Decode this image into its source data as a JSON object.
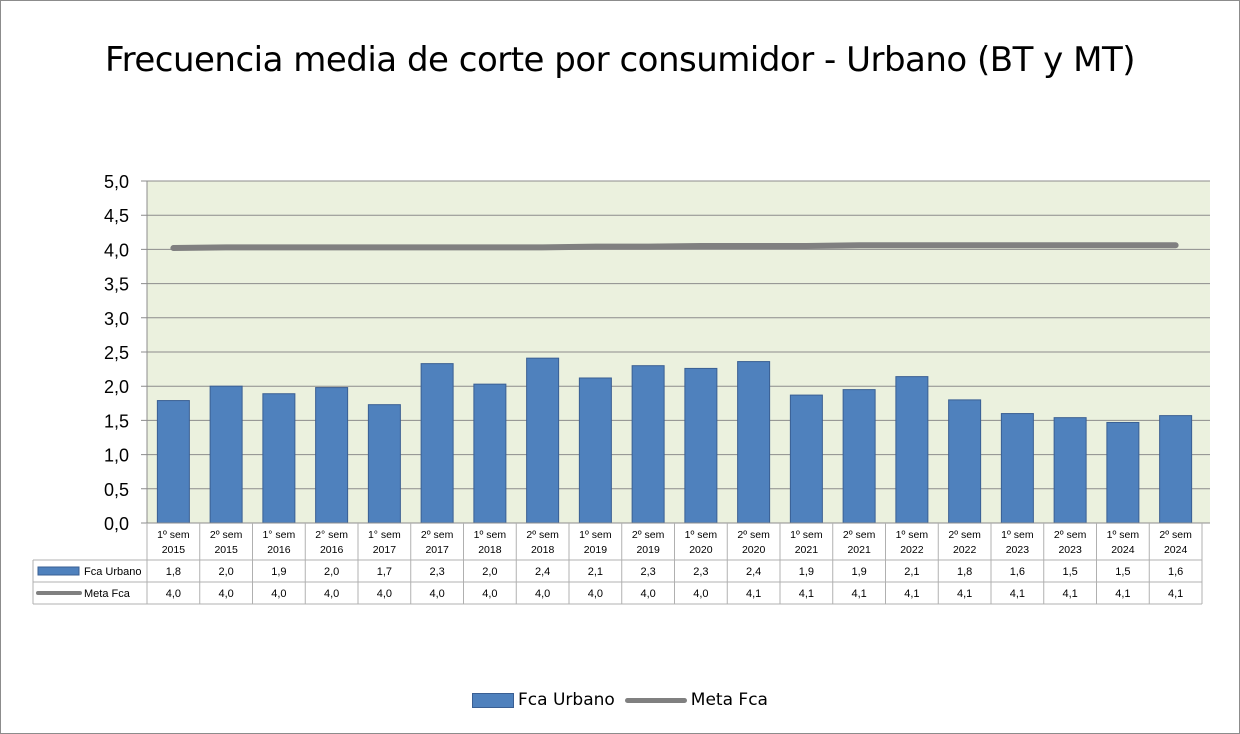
{
  "chart_data": {
    "type": "bar",
    "title": "Frecuencia media de corte por consumidor - Urbano (BT y MT)",
    "categories": [
      [
        "1º sem",
        "2015"
      ],
      [
        "2º sem",
        "2015"
      ],
      [
        "1° sem",
        "2016"
      ],
      [
        "2° sem",
        "2016"
      ],
      [
        "1° sem",
        "2017"
      ],
      [
        "2º sem",
        "2017"
      ],
      [
        "1º sem",
        "2018"
      ],
      [
        "2º sem",
        "2018"
      ],
      [
        "1º sem",
        "2019"
      ],
      [
        "2º sem",
        "2019"
      ],
      [
        "1º sem",
        "2020"
      ],
      [
        "2º sem",
        "2020"
      ],
      [
        "1º sem",
        "2021"
      ],
      [
        "2º sem",
        "2021"
      ],
      [
        "1º sem",
        "2022"
      ],
      [
        "2º sem",
        "2022"
      ],
      [
        "1º sem",
        "2023"
      ],
      [
        "2º sem",
        "2023"
      ],
      [
        "1º sem",
        "2024"
      ],
      [
        "2º sem",
        "2024"
      ]
    ],
    "series": [
      {
        "name": "Fca Urbano",
        "kind": "bar",
        "color": "#4f81bd",
        "values": [
          1.79,
          2.0,
          1.89,
          1.98,
          1.73,
          2.33,
          2.03,
          2.41,
          2.12,
          2.3,
          2.26,
          2.36,
          1.87,
          1.95,
          2.14,
          1.8,
          1.6,
          1.54,
          1.47,
          1.57
        ],
        "labels": [
          "1,8",
          "2,0",
          "1,9",
          "2,0",
          "1,7",
          "2,3",
          "2,0",
          "2,4",
          "2,1",
          "2,3",
          "2,3",
          "2,4",
          "1,9",
          "1,9",
          "2,1",
          "1,8",
          "1,6",
          "1,5",
          "1,5",
          "1,6"
        ]
      },
      {
        "name": "Meta Fca",
        "kind": "line",
        "color": "#808080",
        "values": [
          4.02,
          4.03,
          4.03,
          4.03,
          4.03,
          4.03,
          4.03,
          4.03,
          4.04,
          4.04,
          4.05,
          4.05,
          4.05,
          4.06,
          4.06,
          4.06,
          4.06,
          4.06,
          4.06,
          4.06
        ],
        "labels": [
          "4,0",
          "4,0",
          "4,0",
          "4,0",
          "4,0",
          "4,0",
          "4,0",
          "4,0",
          "4,0",
          "4,0",
          "4,0",
          "4,1",
          "4,1",
          "4,1",
          "4,1",
          "4,1",
          "4,1",
          "4,1",
          "4,1",
          "4,1"
        ]
      }
    ],
    "ylim": [
      0,
      5
    ],
    "yticks": [
      "0,0",
      "0,5",
      "1,0",
      "1,5",
      "2,0",
      "2,5",
      "3,0",
      "3,5",
      "4,0",
      "4,5",
      "5,0"
    ],
    "grid": true,
    "plot_background": "#ebf1de",
    "data_table": true,
    "legend_position": "bottom"
  }
}
